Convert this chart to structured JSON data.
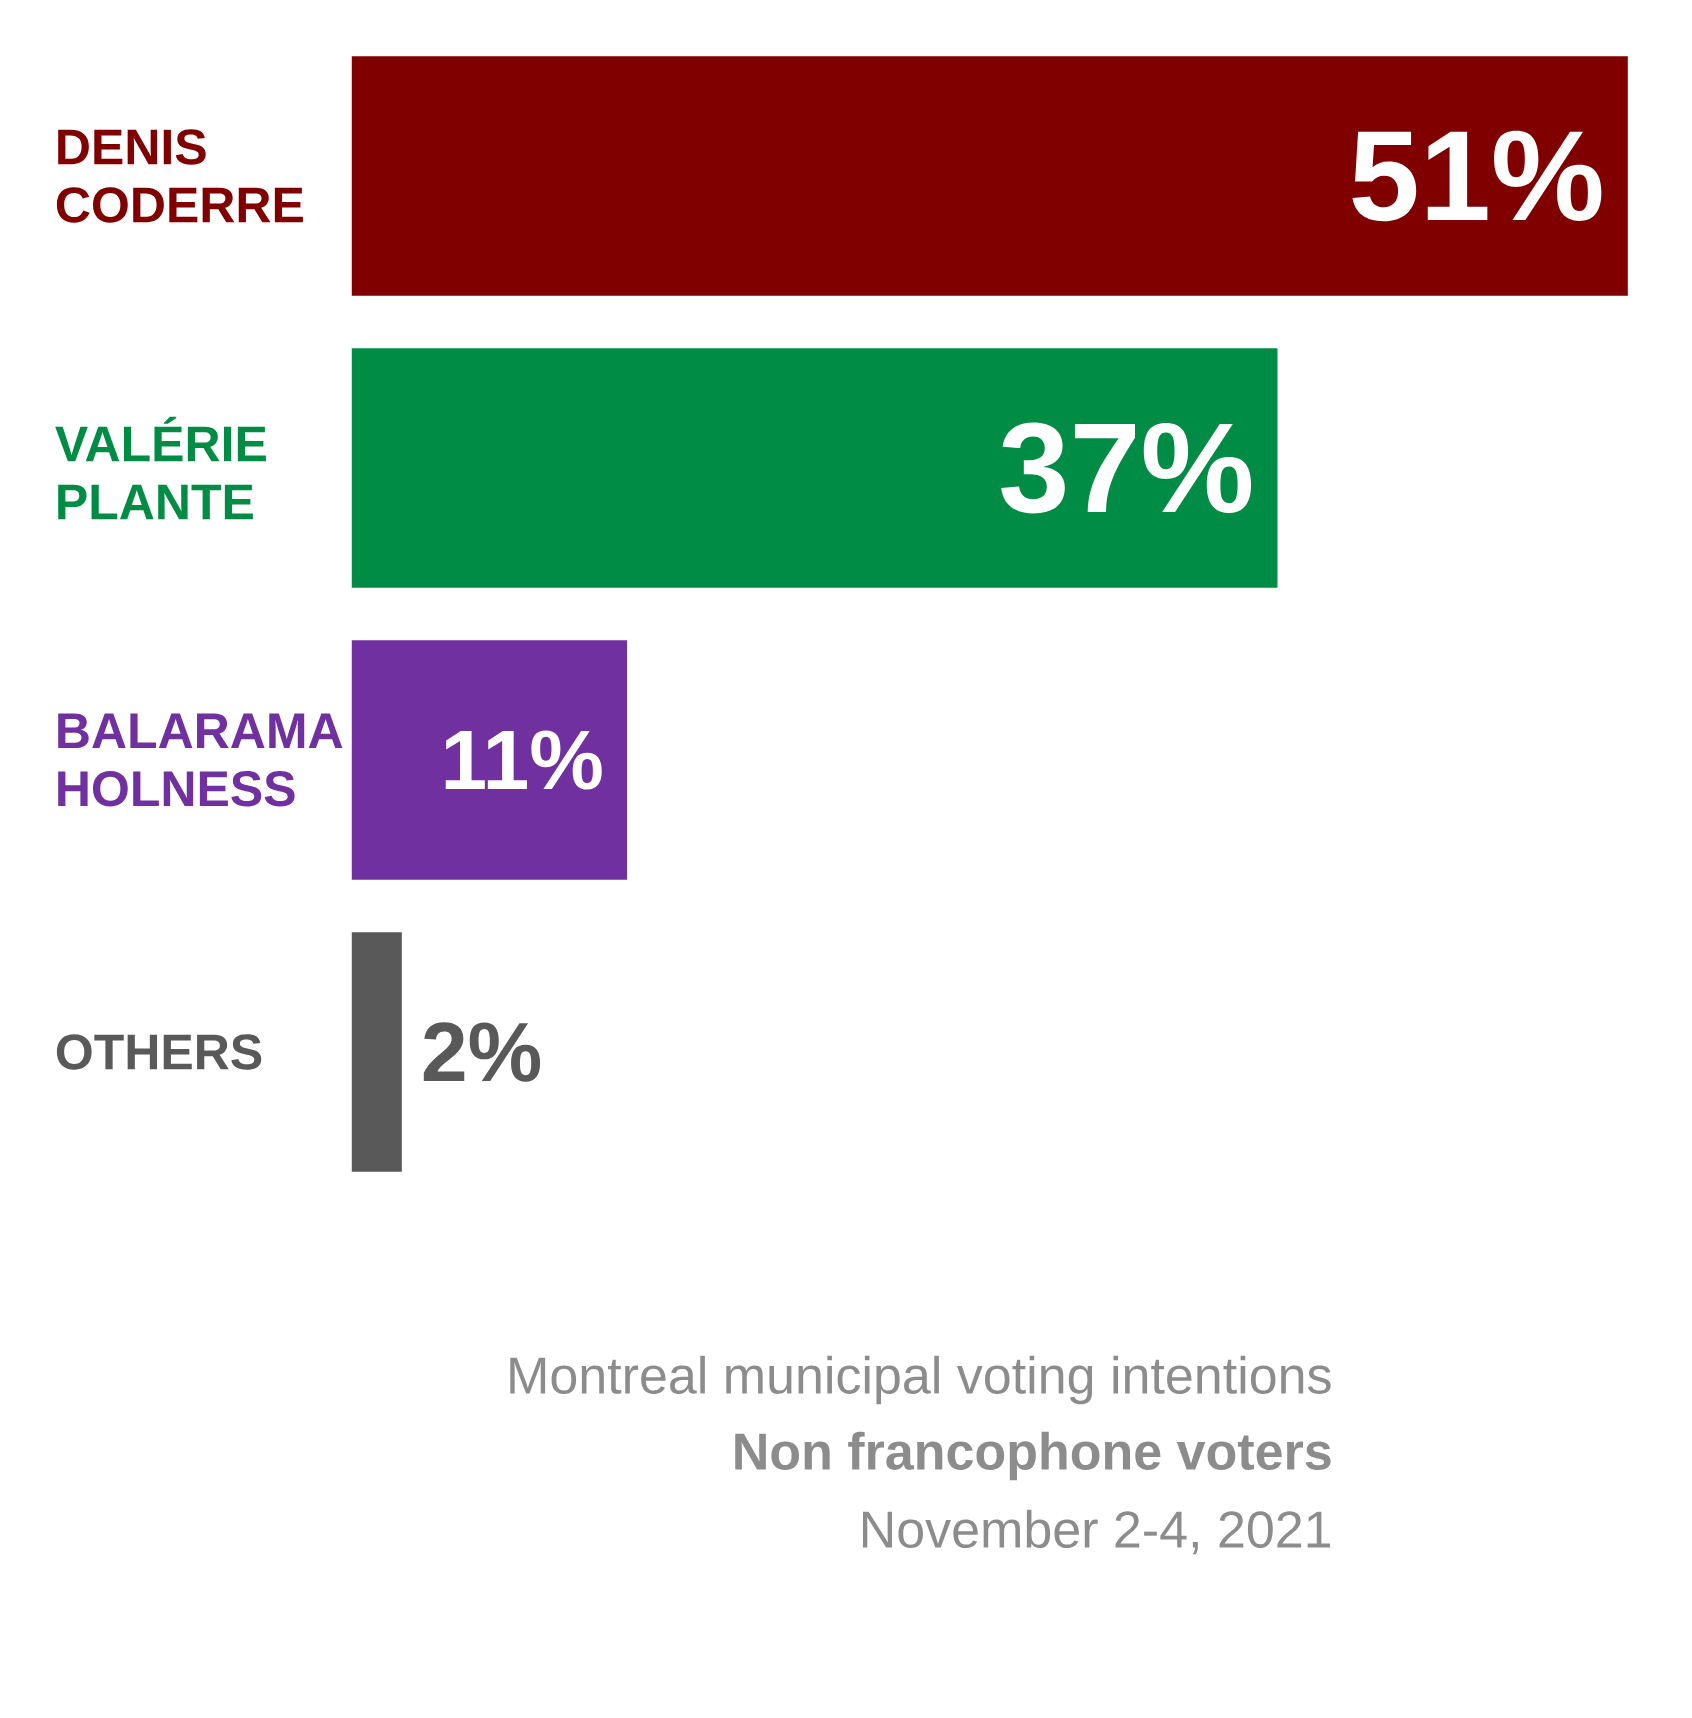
{
  "chart_data": {
    "type": "bar",
    "orientation": "horizontal",
    "categories": [
      "DENIS CODERRE",
      "VALÉRIE PLANTE",
      "BALARAMA HOLNESS",
      "OTHERS"
    ],
    "values": [
      51,
      37,
      11,
      2
    ],
    "colors": [
      "#800000",
      "#008c45",
      "#7030a0",
      "#595959"
    ],
    "value_labels": [
      "51%",
      "37%",
      "11%",
      "2%"
    ],
    "xlim": [
      0,
      51
    ],
    "annotations": [
      "Montreal municipal voting intentions",
      "Non francophone voters",
      "November 2-4, 2021"
    ]
  }
}
